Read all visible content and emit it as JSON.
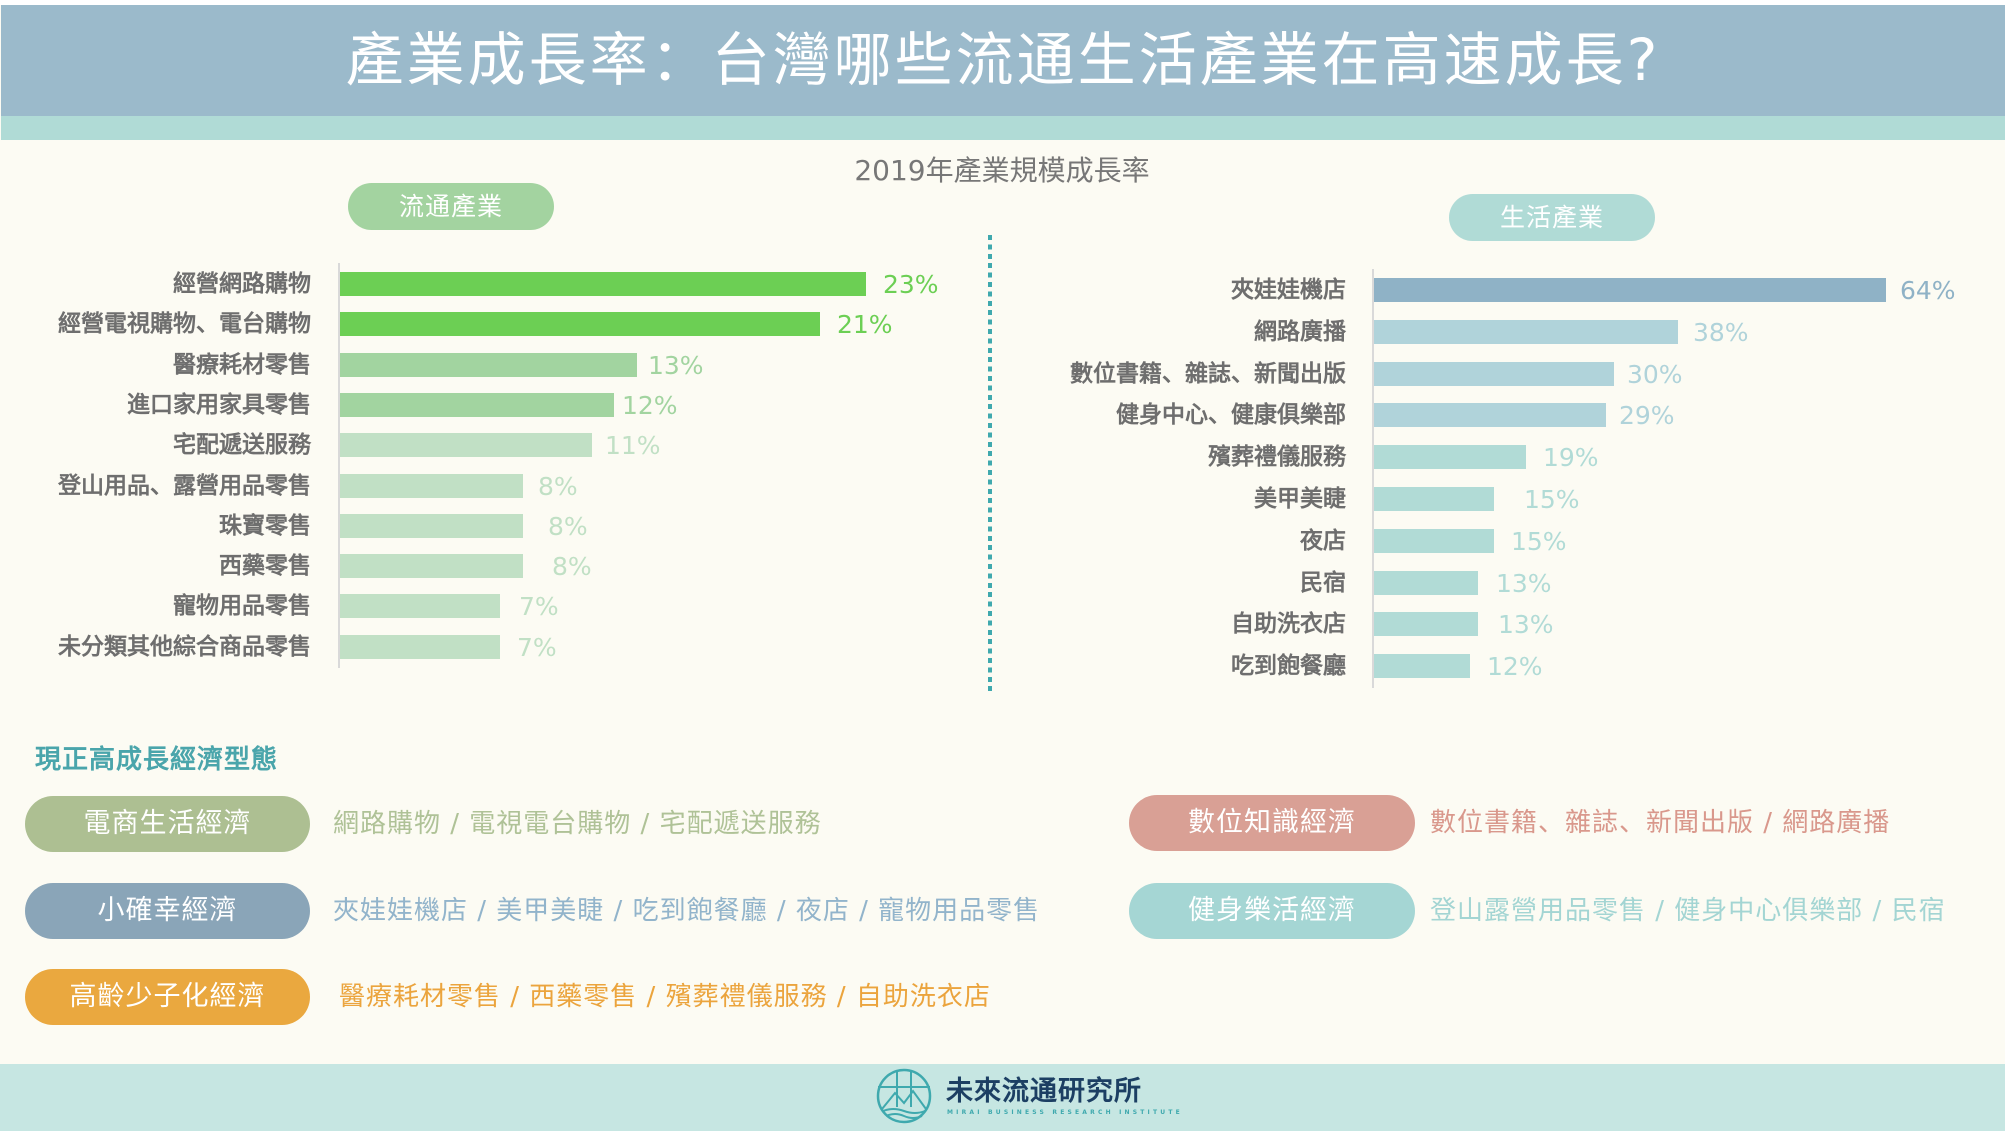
{
  "header": {
    "title": "產業成長率：台灣哪些流通生活產業在高速成長?"
  },
  "chart_data": [
    {
      "type": "bar",
      "orientation": "horizontal",
      "title": "2019年產業規模成長率",
      "group_label": "流通產業",
      "categories": [
        "經營網路購物",
        "經營電視購物、電台購物",
        "醫療耗材零售",
        "進口家用家具零售",
        "宅配遞送服務",
        "登山用品、露營用品零售",
        "珠寶零售",
        "西藥零售",
        "寵物用品零售",
        "未分類其他綜合商品零售"
      ],
      "values": [
        23,
        21,
        13,
        12,
        11,
        8,
        8,
        8,
        7,
        7
      ],
      "value_labels": [
        "23%",
        "21%",
        "13%",
        "12%",
        "11%",
        "8%",
        "8%",
        "8%",
        "7%",
        "7%"
      ],
      "unit": "%",
      "xlim": [
        0,
        23
      ],
      "grid": false,
      "colors": [
        "#6ccf54",
        "#6ccf54",
        "#a2d4a0",
        "#a2d4a0",
        "#c1e0c5",
        "#c1e0c5",
        "#c1e0c5",
        "#c1e0c5",
        "#c1e0c5",
        "#c1e0c5"
      ]
    },
    {
      "type": "bar",
      "orientation": "horizontal",
      "title": "2019年產業規模成長率",
      "group_label": "生活產業",
      "categories": [
        "夾娃娃機店",
        "網路廣播",
        "數位書籍、雜誌、新聞出版",
        "健身中心、健康俱樂部",
        "殯葬禮儀服務",
        "美甲美睫",
        "夜店",
        "民宿",
        "自助洗衣店",
        "吃到飽餐廳"
      ],
      "values": [
        64,
        38,
        30,
        29,
        19,
        15,
        15,
        13,
        13,
        12
      ],
      "value_labels": [
        "64%",
        "38%",
        "30%",
        "29%",
        "19%",
        "15%",
        "15%",
        "13%",
        "13%",
        "12%"
      ],
      "unit": "%",
      "xlim": [
        0,
        64
      ],
      "grid": false,
      "colors": [
        "#8fb2c6",
        "#b0d3da",
        "#b0d3da",
        "#b0d3da",
        "#b1dbd6",
        "#b1dbd6",
        "#b1dbd6",
        "#b1dbd6",
        "#b1dbd6",
        "#b1dbd6"
      ]
    }
  ],
  "economy": {
    "section_title": "現正高成長經濟型態",
    "types": [
      {
        "name": "電商生活經濟",
        "examples": "網路購物 / 電視電台購物 / 宅配遞送服務",
        "pill_color": "#adbf92",
        "text_color": "#afc297"
      },
      {
        "name": "小確幸經濟",
        "examples": "夾娃娃機店 / 美甲美睫 / 吃到飽餐廳 / 夜店 / 寵物用品零售",
        "pill_color": "#8aa5b8",
        "text_color": "#92b4cb"
      },
      {
        "name": "高齡少子化經濟",
        "examples": "醫療耗材零售 / 西藥零售 / 殯葬禮儀服務 / 自助洗衣店",
        "pill_color": "#eaa83f",
        "text_color": "#eba43d"
      },
      {
        "name": "數位知識經濟",
        "examples": "數位書籍、雜誌、新聞出版 / 網路廣播",
        "pill_color": "#d9a095",
        "text_color": "#d9988c"
      },
      {
        "name": "健身樂活經濟",
        "examples": "登山露營用品零售 / 健身中心俱樂部 / 民宿",
        "pill_color": "#a5d6d4",
        "text_color": "#a3d5d3"
      }
    ]
  },
  "footer": {
    "org_name": "未來流通研究所",
    "org_subtitle": "MIRAI BUSINESS RESEARCH INSTITUTE",
    "logo_icon": "mountain-wave-circle-logo"
  }
}
